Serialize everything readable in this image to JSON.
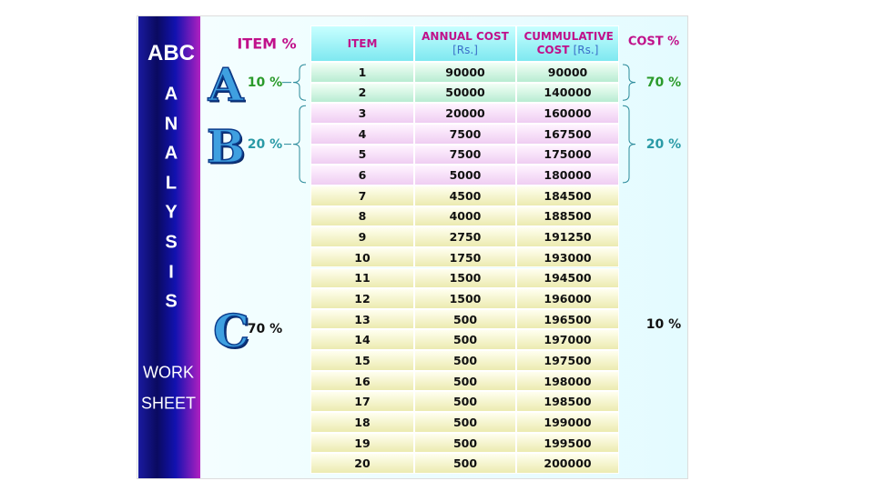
{
  "sidebar": {
    "title": "ABC",
    "letters": [
      "A",
      "N",
      "A",
      "L",
      "Y",
      "S",
      "I",
      "S"
    ],
    "footer": [
      "WORK",
      "SHEET"
    ]
  },
  "item_percent_heading": "ITEM %",
  "cost_percent_heading": "COST %",
  "table": {
    "headers": [
      {
        "text": "ITEM"
      },
      {
        "text": "ANNUAL COST",
        "unit": "[Rs.]"
      },
      {
        "text": "CUMMULATIVE COST",
        "unit": "[Rs.]"
      }
    ],
    "groups": [
      {
        "letter": "A",
        "item_percent": "10 %",
        "cost_percent": "70 %",
        "rows": [
          [
            1,
            90000,
            90000
          ],
          [
            2,
            50000,
            140000
          ]
        ]
      },
      {
        "letter": "B",
        "item_percent": "20 %",
        "cost_percent": "20 %",
        "rows": [
          [
            3,
            20000,
            160000
          ],
          [
            4,
            7500,
            167500
          ],
          [
            5,
            7500,
            175000
          ],
          [
            6,
            5000,
            180000
          ]
        ]
      },
      {
        "letter": "C",
        "item_percent": "70 %",
        "cost_percent": "10 %",
        "rows": [
          [
            7,
            4500,
            184500
          ],
          [
            8,
            4000,
            188500
          ],
          [
            9,
            2750,
            191250
          ],
          [
            10,
            1750,
            193000
          ],
          [
            11,
            1500,
            194500
          ],
          [
            12,
            1500,
            196000
          ],
          [
            13,
            500,
            196500
          ],
          [
            14,
            500,
            197000
          ],
          [
            15,
            500,
            197500
          ],
          [
            16,
            500,
            198000
          ],
          [
            17,
            500,
            198500
          ],
          [
            18,
            500,
            199000
          ],
          [
            19,
            500,
            199500
          ],
          [
            20,
            500,
            200000
          ]
        ]
      }
    ]
  }
}
